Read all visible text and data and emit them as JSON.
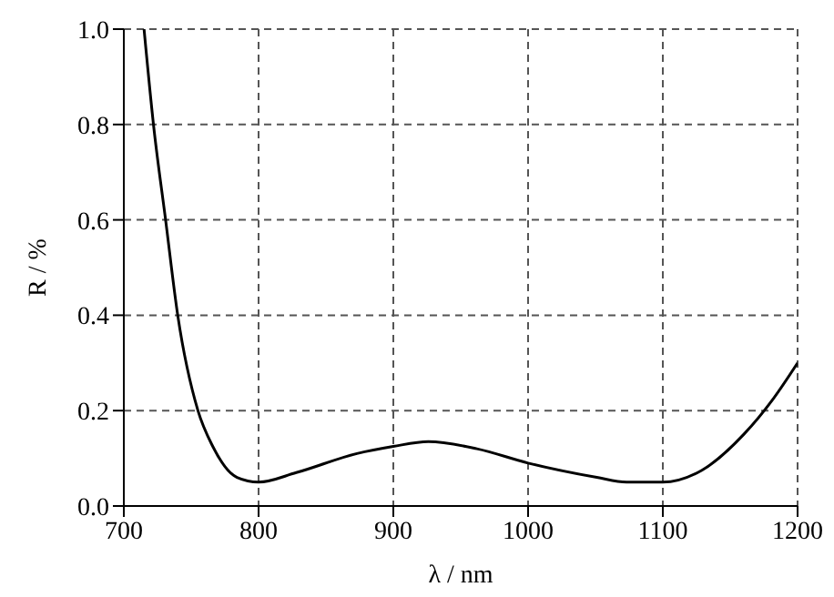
{
  "chart_data": {
    "type": "line",
    "xlabel": "λ / nm",
    "ylabel": "R / %",
    "x": [
      715,
      722,
      731,
      740,
      755,
      766,
      784,
      800,
      828,
      873,
      900,
      926,
      962,
      1000,
      1051,
      1073,
      1100,
      1129,
      1160,
      1182,
      1200
    ],
    "series": [
      {
        "color": "#000000",
        "values": [
          1.0,
          0.8,
          0.6,
          0.4,
          0.2,
          0.125,
          0.06,
          0.05,
          0.07,
          0.11,
          0.125,
          0.135,
          0.12,
          0.09,
          0.06,
          0.05,
          0.05,
          0.075,
          0.15,
          0.225,
          0.3
        ]
      }
    ],
    "xlim": [
      700,
      1200
    ],
    "xticks": [
      700,
      800,
      900,
      1000,
      1100,
      1200
    ],
    "ylim": [
      0,
      1
    ],
    "yticks": [
      {
        "value": 0,
        "label": "0.0"
      },
      {
        "value": 0.2,
        "label": "0.2"
      },
      {
        "value": 0.4,
        "label": "0.4"
      },
      {
        "value": 0.6,
        "label": "0.6"
      },
      {
        "value": 0.8,
        "label": "0.8"
      },
      {
        "value": 1,
        "label": "1.0"
      }
    ],
    "grid": true,
    "marker": "none",
    "line_style": "solid"
  }
}
